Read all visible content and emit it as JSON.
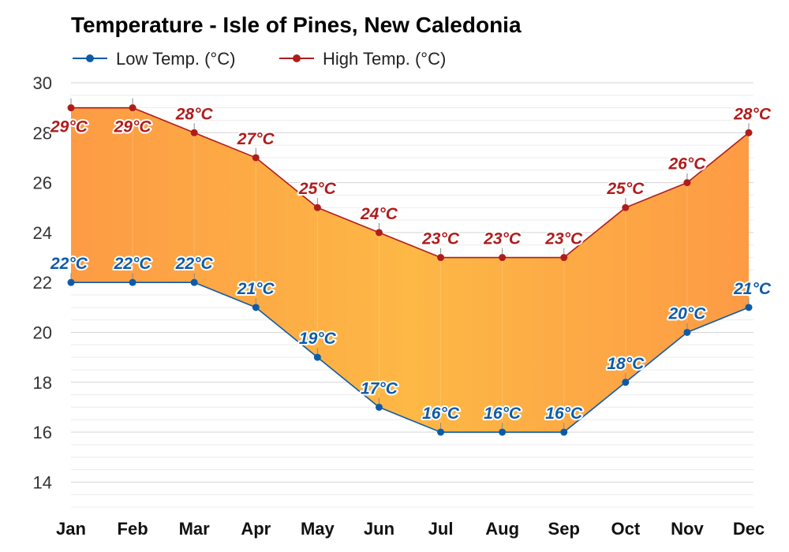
{
  "chart_data": {
    "type": "line",
    "title": "Temperature - Isle of Pines, New Caledonia",
    "categories": [
      "Jan",
      "Feb",
      "Mar",
      "Apr",
      "May",
      "Jun",
      "Jul",
      "Aug",
      "Sep",
      "Oct",
      "Nov",
      "Dec"
    ],
    "series": [
      {
        "name": "Low Temp. (°C)",
        "color": "#0d5ba8",
        "values": [
          22,
          22,
          22,
          21,
          19,
          17,
          16,
          16,
          16,
          18,
          20,
          21
        ]
      },
      {
        "name": "High Temp. (°C)",
        "color": "#b01c1c",
        "values": [
          29,
          29,
          28,
          27,
          25,
          24,
          23,
          23,
          23,
          25,
          26,
          28
        ]
      }
    ],
    "label_suffix": "°C",
    "yticks": [
      14,
      16,
      18,
      20,
      22,
      24,
      26,
      28,
      30
    ],
    "ylim": [
      13,
      30
    ],
    "fill_between": true,
    "fill_colors": [
      "#fd9b45",
      "#fdb845"
    ],
    "grid": true,
    "legend_position": "top-left"
  }
}
